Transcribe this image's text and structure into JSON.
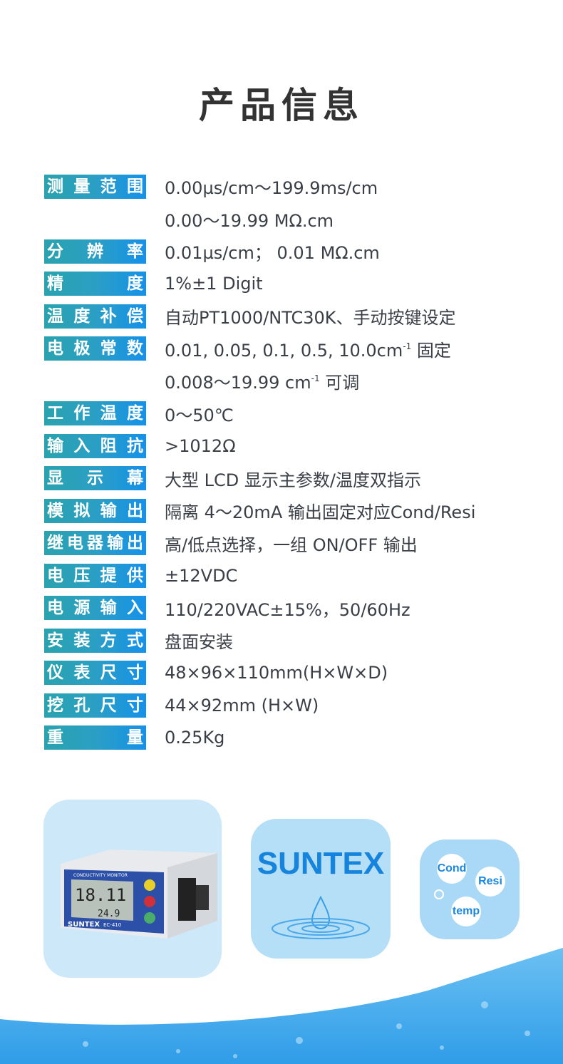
{
  "title": "产品信息",
  "specs": [
    {
      "label": "测量范围",
      "value": "0.00µs/cm～199.9ms/cm"
    },
    {
      "label": "",
      "value": "0.00～19.99 MΩ.cm"
    },
    {
      "label": "分辨率",
      "value": "0.01µs/cm； 0.01 MΩ.cm"
    },
    {
      "label": "精度",
      "value": "1%±1 Digit"
    },
    {
      "label": "温度补偿",
      "value": "自动PT1000/NTC30K、手动按键设定"
    },
    {
      "label": "电极常数",
      "value": "0.01, 0.05, 0.1, 0.5, 10.0cm",
      "sup": "-1",
      "post": " 固定"
    },
    {
      "label": "",
      "value": "0.008～19.99 cm",
      "sup": "-1",
      "post": " 可调"
    },
    {
      "label": "工作温度",
      "value": "0～50℃"
    },
    {
      "label": "输入阻抗",
      "value": ">1012Ω"
    },
    {
      "label": "显示幕",
      "value": "大型 LCD 显示主参数/温度双指示"
    },
    {
      "label": "模拟输出",
      "value": "隔离 4～20mA 输出固定对应Cond/Resi"
    },
    {
      "label": "继电器输出",
      "value": "高/低点选择，一组 ON/OFF 输出"
    },
    {
      "label": "电压提供",
      "value": "±12VDC"
    },
    {
      "label": "电源输入",
      "value": "110/220VAC±15%，50/60Hz"
    },
    {
      "label": "安装方式",
      "value": "盘面安装"
    },
    {
      "label": "仪表尺寸",
      "value": "48×96×110mm(H×W×D)"
    },
    {
      "label": "挖孔尺寸",
      "value": "44×92mm (H×W)"
    },
    {
      "label": "重量",
      "value": "0.25Kg"
    }
  ],
  "cards": {
    "device": {
      "brand": "SUNTEX",
      "model": "EC-410",
      "header": "CONDUCTIVITY MONITOR",
      "reading": "18.11",
      "temp": "24.9"
    },
    "brand": "SUNTEX",
    "bubbles": [
      "Cond",
      "Resi",
      "temp"
    ]
  },
  "colors": {
    "label_start": "#2aa3ae",
    "label_end": "#1591ea",
    "brand": "#1684dd",
    "wave": "#3aa6ea"
  }
}
